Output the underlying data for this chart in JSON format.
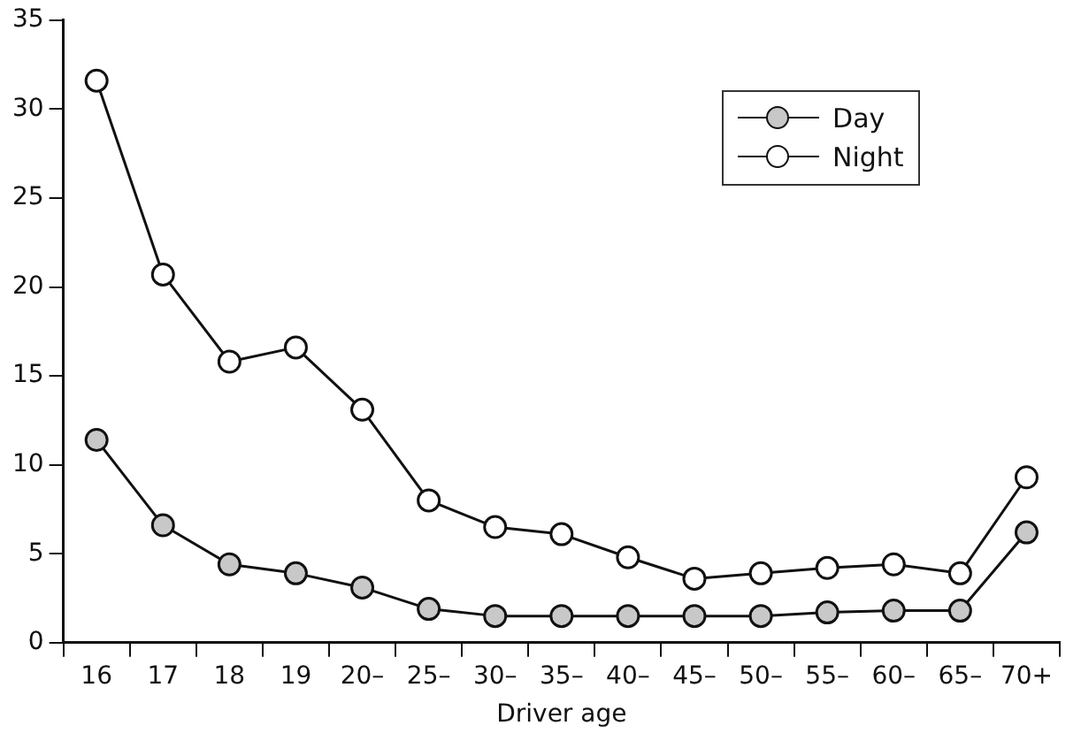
{
  "chart_data": {
    "type": "line",
    "xlabel": "Driver age",
    "categories": [
      "16",
      "17",
      "18",
      "19",
      "20–",
      "25–",
      "30–",
      "35–",
      "40–",
      "45–",
      "50–",
      "55–",
      "60–",
      "65–",
      "70+"
    ],
    "series": [
      {
        "name": "Day",
        "color": "#c8c8c8",
        "values": [
          11.4,
          6.6,
          4.4,
          3.9,
          3.1,
          1.9,
          1.5,
          1.5,
          1.5,
          1.5,
          1.5,
          1.7,
          1.8,
          1.8,
          6.2
        ]
      },
      {
        "name": "Night",
        "color": "#ffffff",
        "values": [
          31.6,
          20.7,
          15.8,
          16.6,
          13.1,
          8.0,
          6.5,
          6.1,
          4.8,
          3.6,
          3.9,
          4.2,
          4.4,
          3.9,
          9.3
        ]
      }
    ],
    "ylim": [
      0,
      35
    ],
    "yticks": [
      0,
      5,
      10,
      15,
      20,
      25,
      30,
      35
    ],
    "legend": "top right",
    "marker": "circle",
    "line_style": "solid"
  }
}
